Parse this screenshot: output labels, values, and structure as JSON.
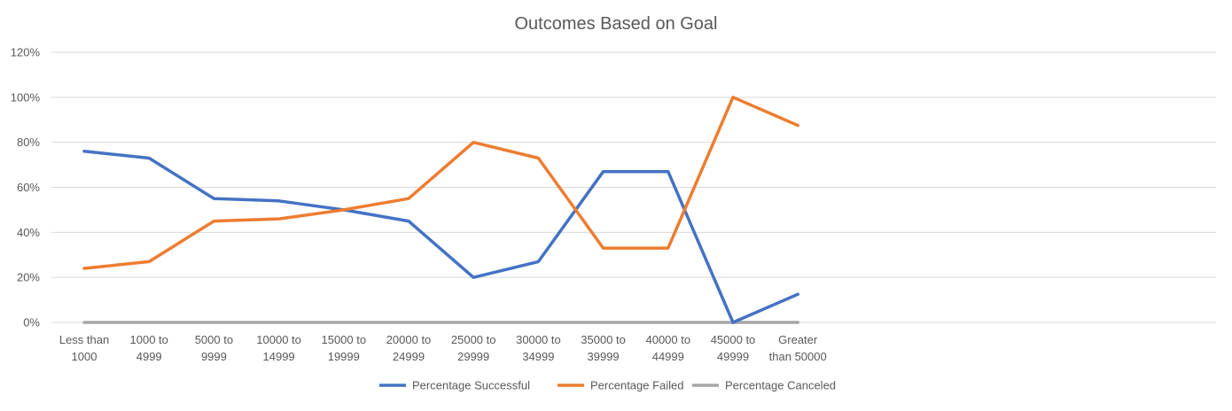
{
  "chart_data": {
    "type": "line",
    "title": "Outcomes Based on Goal",
    "xlabel": "",
    "ylabel": "",
    "categories": [
      [
        "Less than",
        "1000"
      ],
      [
        "1000 to",
        "4999"
      ],
      [
        "5000 to",
        "9999"
      ],
      [
        "10000 to",
        "14999"
      ],
      [
        "15000 to",
        "19999"
      ],
      [
        "20000 to",
        "24999"
      ],
      [
        "25000 to",
        "29999"
      ],
      [
        "30000 to",
        "34999"
      ],
      [
        "35000 to",
        "39999"
      ],
      [
        "40000 to",
        "44999"
      ],
      [
        "45000 to",
        "49999"
      ],
      [
        "Greater",
        "than 50000"
      ]
    ],
    "yticks": [
      "0%",
      "20%",
      "40%",
      "60%",
      "80%",
      "100%",
      "120%"
    ],
    "ylim": [
      0,
      120
    ],
    "grid": true,
    "legend_position": "bottom",
    "series": [
      {
        "name": "Percentage Successful",
        "color": "#4472c4",
        "values": [
          76,
          73,
          55,
          54,
          50,
          45,
          20,
          27,
          67,
          67,
          0,
          12.5
        ]
      },
      {
        "name": "Percentage Failed",
        "color": "#ed7d31",
        "values": [
          24,
          27,
          45,
          46,
          50,
          55,
          80,
          73,
          33,
          33,
          100,
          87.5
        ]
      },
      {
        "name": "Percentage Canceled",
        "color": "#a5a5a5",
        "values": [
          0,
          0,
          0,
          0,
          0,
          0,
          0,
          0,
          0,
          0,
          0,
          0
        ]
      }
    ]
  }
}
